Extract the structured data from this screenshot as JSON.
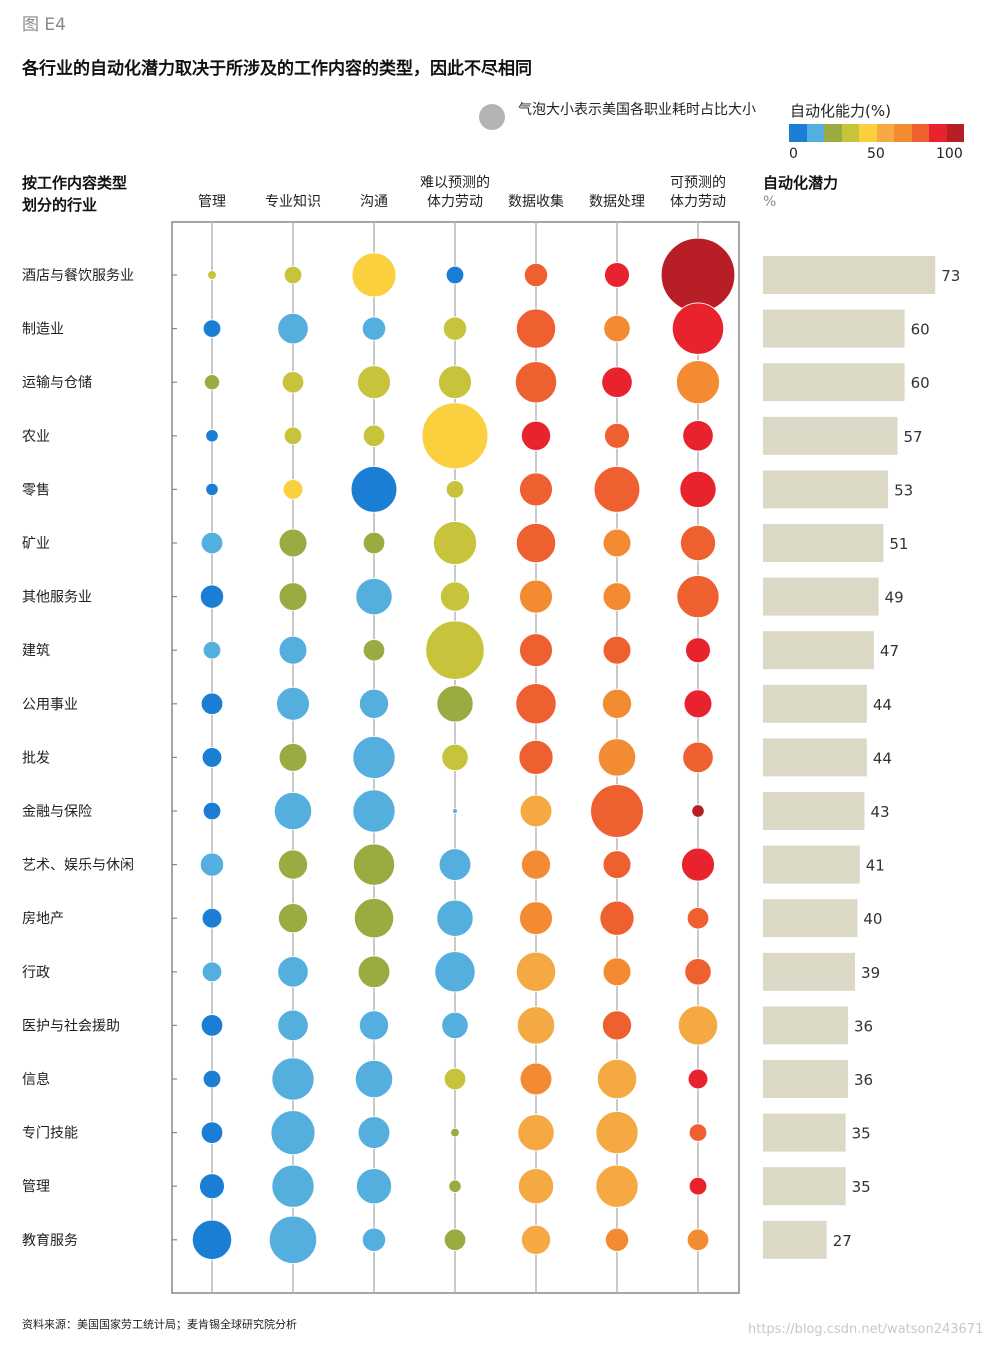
{
  "figure_label": "图 E4",
  "title": "各行业的自动化潜力取决于所涉及的工作内容的类型，因此不尽相同",
  "legend": {
    "bubble_note": "气泡大小表示美国各职业耗时占比大小",
    "bubble_color": "#b3b3b3",
    "scale_title": "自动化能力(%)",
    "scale_ticks": [
      "0",
      "50",
      "100"
    ],
    "scale_colors": [
      "#1a7fd4",
      "#54aede",
      "#9bab42",
      "#c7c43c",
      "#fad03f",
      "#f4a943",
      "#f38b33",
      "#ef6030",
      "#e8232e",
      "#b71e25"
    ]
  },
  "row_header": "按工作内容类型\n划分的行业",
  "potential_header": "自动化潜力",
  "potential_unit": "%",
  "source": "资料来源：美国国家劳工统计局；麦肯锡全球研究院分析",
  "watermark": "https://blog.csdn.net/watson243671",
  "chart_data": {
    "type": "bubble_matrix",
    "columns": [
      "管理",
      "专业知识",
      "沟通",
      "难以预测的\n体力劳动",
      "数据收集",
      "数据处理",
      "可预测的\n体力劳动"
    ],
    "rows": [
      {
        "industry": "酒店与餐饮服务业",
        "potential": 73,
        "sizes": [
          1,
          4,
          25,
          4,
          7,
          8,
          70
        ],
        "colors": [
          3,
          3,
          4,
          0,
          7,
          8,
          9
        ]
      },
      {
        "industry": "制造业",
        "potential": 60,
        "sizes": [
          4,
          12,
          7,
          7,
          20,
          9,
          34
        ],
        "colors": [
          0,
          1,
          1,
          3,
          7,
          6,
          8
        ]
      },
      {
        "industry": "运输与仓储",
        "potential": 60,
        "sizes": [
          3,
          6,
          14,
          14,
          22,
          12,
          24
        ],
        "colors": [
          2,
          3,
          3,
          3,
          7,
          8,
          6
        ]
      },
      {
        "industry": "农业",
        "potential": 57,
        "sizes": [
          2,
          4,
          6,
          56,
          11,
          8,
          12
        ],
        "colors": [
          0,
          3,
          3,
          4,
          8,
          7,
          8
        ]
      },
      {
        "industry": "零售",
        "potential": 53,
        "sizes": [
          2,
          5,
          27,
          4,
          14,
          27,
          17
        ],
        "colors": [
          0,
          4,
          0,
          3,
          7,
          7,
          8
        ]
      },
      {
        "industry": "矿业",
        "potential": 51,
        "sizes": [
          6,
          10,
          6,
          24,
          20,
          10,
          16
        ],
        "colors": [
          1,
          2,
          2,
          3,
          7,
          6,
          7
        ]
      },
      {
        "industry": "其他服务业",
        "potential": 49,
        "sizes": [
          7,
          10,
          17,
          11,
          14,
          10,
          23
        ],
        "colors": [
          0,
          2,
          1,
          3,
          6,
          6,
          7
        ]
      },
      {
        "industry": "建筑",
        "potential": 47,
        "sizes": [
          4,
          10,
          6,
          44,
          14,
          10,
          8
        ],
        "colors": [
          1,
          1,
          2,
          3,
          7,
          7,
          8
        ]
      },
      {
        "industry": "公用事业",
        "potential": 44,
        "sizes": [
          6,
          14,
          11,
          17,
          21,
          11,
          10
        ],
        "colors": [
          0,
          1,
          1,
          2,
          7,
          6,
          8
        ]
      },
      {
        "industry": "批发",
        "potential": 44,
        "sizes": [
          5,
          10,
          23,
          9,
          15,
          18,
          12
        ],
        "colors": [
          0,
          2,
          1,
          3,
          7,
          6,
          7
        ]
      },
      {
        "industry": "金融与保险",
        "potential": 43,
        "sizes": [
          4,
          18,
          23,
          0.3,
          13,
          36,
          2
        ],
        "colors": [
          0,
          1,
          1,
          1,
          5,
          7,
          9
        ]
      },
      {
        "industry": "艺术、娱乐与休闲",
        "potential": 41,
        "sizes": [
          7,
          11,
          22,
          13,
          11,
          10,
          14
        ],
        "colors": [
          1,
          2,
          2,
          1,
          6,
          7,
          8
        ]
      },
      {
        "industry": "房地产",
        "potential": 40,
        "sizes": [
          5,
          11,
          20,
          17,
          14,
          15,
          6
        ],
        "colors": [
          0,
          2,
          2,
          1,
          6,
          7,
          7
        ]
      },
      {
        "industry": "行政",
        "potential": 39,
        "sizes": [
          5,
          12,
          13,
          21,
          20,
          10,
          9
        ],
        "colors": [
          1,
          1,
          2,
          1,
          5,
          6,
          7
        ]
      },
      {
        "industry": "医护与社会援助",
        "potential": 36,
        "sizes": [
          6,
          12,
          11,
          9,
          18,
          11,
          20
        ],
        "colors": [
          0,
          1,
          1,
          1,
          5,
          7,
          5
        ]
      },
      {
        "industry": "信息",
        "potential": 36,
        "sizes": [
          4,
          23,
          18,
          6,
          13,
          20,
          5
        ],
        "colors": [
          0,
          1,
          1,
          3,
          6,
          5,
          8
        ]
      },
      {
        "industry": "专门技能",
        "potential": 35,
        "sizes": [
          6,
          25,
          13,
          1,
          17,
          23,
          4
        ],
        "colors": [
          0,
          1,
          1,
          2,
          5,
          5,
          7
        ]
      },
      {
        "industry": "管理",
        "potential": 35,
        "sizes": [
          8,
          23,
          16,
          2,
          16,
          23,
          4
        ],
        "colors": [
          0,
          1,
          1,
          2,
          5,
          5,
          8
        ]
      },
      {
        "industry": "教育服务",
        "potential": 27,
        "sizes": [
          20,
          29,
          7,
          6,
          11,
          7,
          6
        ],
        "colors": [
          0,
          1,
          1,
          2,
          5,
          6,
          6
        ]
      }
    ]
  }
}
